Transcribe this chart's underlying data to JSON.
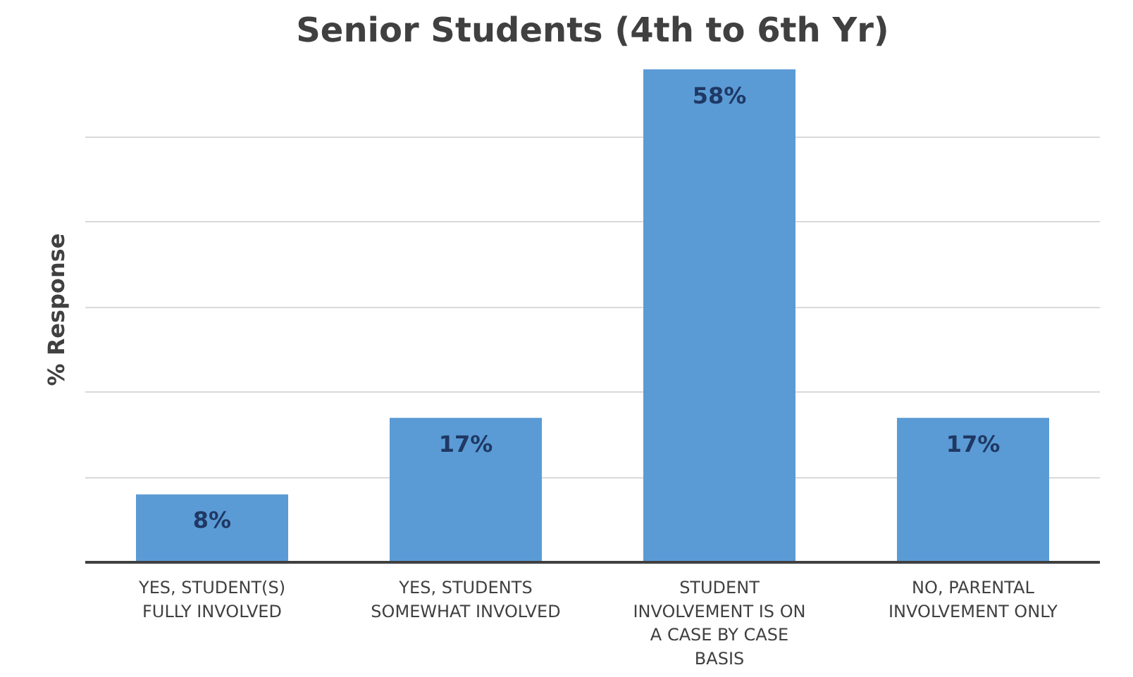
{
  "chart_data": {
    "type": "bar",
    "title": "Senior Students (4th to 6th Yr)",
    "ylabel": "% Response",
    "categories": [
      "YES, STUDENT(S) FULLY INVOLVED",
      "YES, STUDENTS SOMEWHAT INVOLVED",
      "STUDENT INVOLVEMENT IS ON A CASE BY CASE BASIS",
      "NO, PARENTAL INVOLVEMENT ONLY"
    ],
    "values": [
      8,
      17,
      58,
      17
    ],
    "value_labels": [
      "8%",
      "17%",
      "58%",
      "17%"
    ],
    "color": "#5b9bd5",
    "grid": "y",
    "tick_labels": "x"
  }
}
